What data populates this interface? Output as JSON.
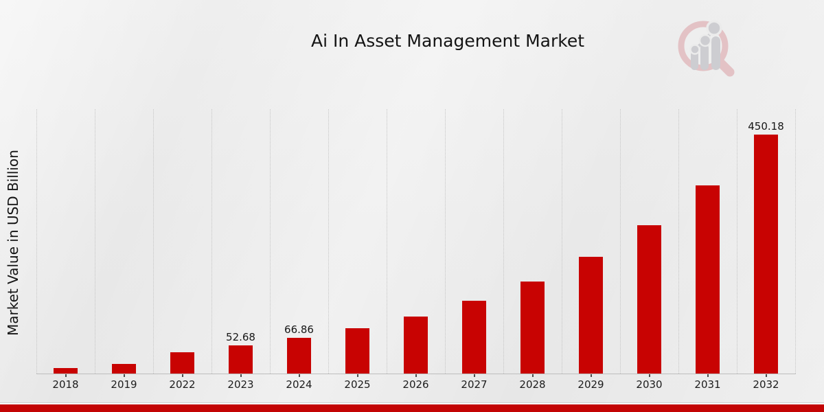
{
  "chart_data": {
    "type": "bar",
    "title": "Ai In Asset Management Market",
    "ylabel": "Market Value in USD Billion",
    "xlabel": "",
    "categories": [
      "2018",
      "2019",
      "2022",
      "2023",
      "2024",
      "2025",
      "2026",
      "2027",
      "2028",
      "2029",
      "2030",
      "2031",
      "2032"
    ],
    "values": [
      9.8,
      18.2,
      40.5,
      52.68,
      66.86,
      84.87,
      107.72,
      136.73,
      173.55,
      220.28,
      279.59,
      354.87,
      450.18
    ],
    "data_labels": [
      "",
      "",
      "",
      "52.68",
      "66.86",
      "",
      "",
      "",
      "",
      "",
      "",
      "",
      "450.18"
    ],
    "ylim": [
      0,
      498
    ],
    "grid": "vertical-dotted-category-boundaries",
    "legend": "none",
    "bar_color": "#c80302"
  },
  "colors": {
    "bar": "#c80302",
    "footer_stripe": "#c30404",
    "text": "#161616",
    "gridline": "#c5c5c5",
    "axis": "#bdbdbd",
    "background": "#e9e9e9"
  },
  "logo": {
    "name": "magnifier-bar-chart-watermark",
    "ring_color": "#e3c2c5",
    "bars_color": "#cdcdd1"
  }
}
